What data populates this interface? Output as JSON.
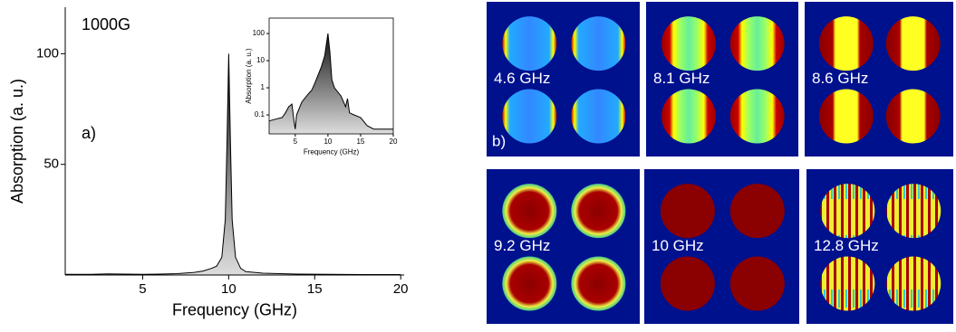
{
  "chart_data": [
    {
      "type": "area",
      "annotations": [
        "1000G",
        "a)"
      ],
      "xlabel": "Frequency (GHz)",
      "ylabel": "Absorption (a. u.)",
      "x": [
        0.5,
        2,
        3,
        4,
        5,
        6,
        7,
        8,
        8.5,
        9,
        9.3,
        9.6,
        9.8,
        9.9,
        10,
        10.1,
        10.2,
        10.4,
        10.7,
        11,
        12,
        13,
        14,
        16,
        18,
        20
      ],
      "values": [
        0.3,
        0.3,
        0.5,
        0.4,
        0.3,
        0.4,
        0.6,
        1.2,
        1.8,
        3,
        4,
        8,
        25,
        60,
        100,
        60,
        25,
        8,
        3,
        1.5,
        0.8,
        0.6,
        0.4,
        0.3,
        0.2,
        0.2
      ],
      "color": "#000000",
      "xlim": [
        0.5,
        20.2
      ],
      "xticks": [
        5,
        10,
        15,
        20
      ],
      "ylim": [
        0,
        121
      ],
      "yticks": [
        50,
        100
      ]
    },
    {
      "type": "area",
      "xlabel": "Frequency (GHz)",
      "ylabel": "Absorption (a. u.)",
      "log_scale": true,
      "x": [
        1,
        2,
        3,
        3.5,
        4,
        4.5,
        4.8,
        5,
        5.2,
        6,
        7,
        7.5,
        8,
        8.5,
        9,
        9.5,
        10,
        10.3,
        10.6,
        11,
        12,
        12.7,
        13,
        13.3,
        14,
        15,
        16,
        17,
        20
      ],
      "values": [
        0.06,
        0.07,
        0.08,
        0.12,
        0.2,
        0.25,
        0.06,
        0.03,
        0.1,
        0.3,
        0.6,
        0.8,
        1.5,
        3,
        6,
        15,
        100,
        20,
        2,
        1,
        0.5,
        0.2,
        0.4,
        0.12,
        0.1,
        0.08,
        0.04,
        0.03,
        0.03
      ],
      "color": "#000000",
      "xlim": [
        1,
        20
      ],
      "xticks": [
        5,
        10,
        15,
        20
      ],
      "ylim": [
        0.02,
        370
      ],
      "yticks": [
        0.1,
        1,
        10,
        100
      ]
    }
  ],
  "panels": {
    "label": "b)",
    "items": [
      {
        "label": "4.6 GHz"
      },
      {
        "label": "8.1 GHz"
      },
      {
        "label": "8.6 GHz"
      },
      {
        "label": "9.2 GHz"
      },
      {
        "label": "10 GHz"
      },
      {
        "label": "12.8 GHz"
      }
    ]
  }
}
